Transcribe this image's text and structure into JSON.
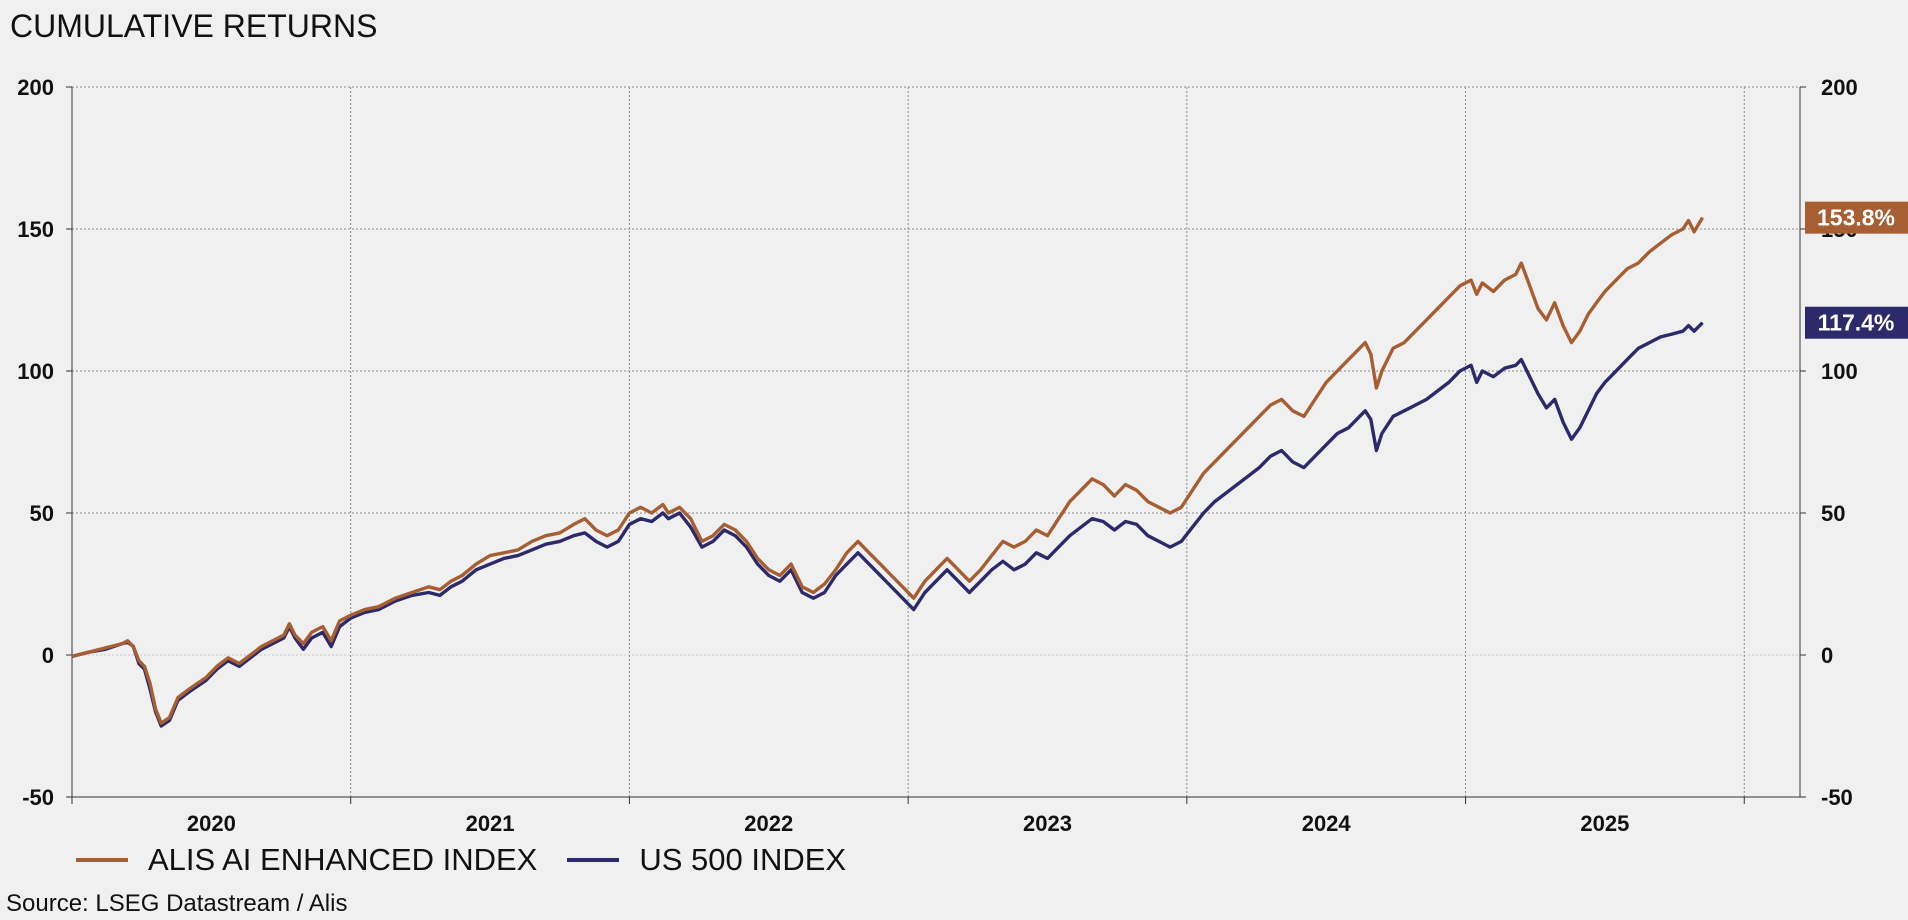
{
  "chart_data": {
    "type": "line",
    "title": "CUMULATIVE RETURNS",
    "source": "Source: LSEG Datastream / Alis",
    "ylim": [
      -50,
      200
    ],
    "yticks": [
      -50,
      0,
      50,
      100,
      150,
      200
    ],
    "xlim": [
      2019.5,
      2025.7
    ],
    "xticks": [
      2020,
      2021,
      2022,
      2023,
      2024,
      2025
    ],
    "grid": true,
    "legend_position": "bottom-left",
    "series": [
      {
        "name": "ALIS AI ENHANCED INDEX",
        "color": "#a65e32",
        "end_label": "153.8%",
        "points": [
          [
            2019.5,
            -0.5
          ],
          [
            2019.56,
            1
          ],
          [
            2019.62,
            2.5
          ],
          [
            2019.68,
            4
          ],
          [
            2019.7,
            5
          ],
          [
            2019.72,
            3
          ],
          [
            2019.74,
            -2
          ],
          [
            2019.76,
            -4
          ],
          [
            2019.78,
            -10
          ],
          [
            2019.8,
            -19
          ],
          [
            2019.82,
            -24
          ],
          [
            2019.85,
            -22
          ],
          [
            2019.88,
            -15
          ],
          [
            2019.92,
            -12
          ],
          [
            2019.95,
            -10
          ],
          [
            2019.98,
            -8
          ],
          [
            2020.02,
            -4
          ],
          [
            2020.06,
            -1
          ],
          [
            2020.1,
            -3
          ],
          [
            2020.14,
            0
          ],
          [
            2020.18,
            3
          ],
          [
            2020.22,
            5
          ],
          [
            2020.26,
            7
          ],
          [
            2020.28,
            11
          ],
          [
            2020.3,
            7
          ],
          [
            2020.33,
            4
          ],
          [
            2020.36,
            8
          ],
          [
            2020.4,
            10
          ],
          [
            2020.43,
            5
          ],
          [
            2020.46,
            12
          ],
          [
            2020.5,
            14
          ],
          [
            2020.55,
            16
          ],
          [
            2020.6,
            17
          ],
          [
            2020.66,
            20
          ],
          [
            2020.72,
            22
          ],
          [
            2020.78,
            24
          ],
          [
            2020.82,
            23
          ],
          [
            2020.86,
            26
          ],
          [
            2020.9,
            28
          ],
          [
            2020.95,
            32
          ],
          [
            2021.0,
            35
          ],
          [
            2021.05,
            36
          ],
          [
            2021.1,
            37
          ],
          [
            2021.15,
            40
          ],
          [
            2021.2,
            42
          ],
          [
            2021.25,
            43
          ],
          [
            2021.3,
            46
          ],
          [
            2021.34,
            48
          ],
          [
            2021.38,
            44
          ],
          [
            2021.42,
            42
          ],
          [
            2021.46,
            44
          ],
          [
            2021.5,
            50
          ],
          [
            2021.54,
            52
          ],
          [
            2021.58,
            50
          ],
          [
            2021.62,
            53
          ],
          [
            2021.64,
            50
          ],
          [
            2021.68,
            52
          ],
          [
            2021.72,
            48
          ],
          [
            2021.76,
            40
          ],
          [
            2021.8,
            42
          ],
          [
            2021.84,
            46
          ],
          [
            2021.88,
            44
          ],
          [
            2021.92,
            40
          ],
          [
            2021.96,
            34
          ],
          [
            2022.0,
            30
          ],
          [
            2022.04,
            28
          ],
          [
            2022.08,
            32
          ],
          [
            2022.12,
            24
          ],
          [
            2022.16,
            22
          ],
          [
            2022.2,
            25
          ],
          [
            2022.24,
            30
          ],
          [
            2022.28,
            36
          ],
          [
            2022.32,
            40
          ],
          [
            2022.36,
            36
          ],
          [
            2022.4,
            32
          ],
          [
            2022.44,
            28
          ],
          [
            2022.48,
            24
          ],
          [
            2022.52,
            20
          ],
          [
            2022.56,
            26
          ],
          [
            2022.6,
            30
          ],
          [
            2022.64,
            34
          ],
          [
            2022.68,
            30
          ],
          [
            2022.72,
            26
          ],
          [
            2022.76,
            30
          ],
          [
            2022.8,
            35
          ],
          [
            2022.84,
            40
          ],
          [
            2022.88,
            38
          ],
          [
            2022.92,
            40
          ],
          [
            2022.96,
            44
          ],
          [
            2023.0,
            42
          ],
          [
            2023.04,
            48
          ],
          [
            2023.08,
            54
          ],
          [
            2023.12,
            58
          ],
          [
            2023.16,
            62
          ],
          [
            2023.2,
            60
          ],
          [
            2023.24,
            56
          ],
          [
            2023.28,
            60
          ],
          [
            2023.32,
            58
          ],
          [
            2023.36,
            54
          ],
          [
            2023.4,
            52
          ],
          [
            2023.44,
            50
          ],
          [
            2023.48,
            52
          ],
          [
            2023.52,
            58
          ],
          [
            2023.56,
            64
          ],
          [
            2023.6,
            68
          ],
          [
            2023.64,
            72
          ],
          [
            2023.68,
            76
          ],
          [
            2023.72,
            80
          ],
          [
            2023.76,
            84
          ],
          [
            2023.8,
            88
          ],
          [
            2023.84,
            90
          ],
          [
            2023.88,
            86
          ],
          [
            2023.92,
            84
          ],
          [
            2023.96,
            90
          ],
          [
            2024.0,
            96
          ],
          [
            2024.04,
            100
          ],
          [
            2024.08,
            104
          ],
          [
            2024.12,
            108
          ],
          [
            2024.14,
            110
          ],
          [
            2024.16,
            106
          ],
          [
            2024.18,
            94
          ],
          [
            2024.2,
            100
          ],
          [
            2024.24,
            108
          ],
          [
            2024.28,
            110
          ],
          [
            2024.32,
            114
          ],
          [
            2024.36,
            118
          ],
          [
            2024.4,
            122
          ],
          [
            2024.44,
            126
          ],
          [
            2024.48,
            130
          ],
          [
            2024.52,
            132
          ],
          [
            2024.54,
            127
          ],
          [
            2024.56,
            131
          ],
          [
            2024.6,
            128
          ],
          [
            2024.64,
            132
          ],
          [
            2024.68,
            134
          ],
          [
            2024.7,
            138
          ],
          [
            2024.73,
            130
          ],
          [
            2024.76,
            122
          ],
          [
            2024.79,
            118
          ],
          [
            2024.82,
            124
          ],
          [
            2024.85,
            116
          ],
          [
            2024.88,
            110
          ],
          [
            2024.91,
            114
          ],
          [
            2024.94,
            120
          ],
          [
            2024.97,
            124
          ],
          [
            2025.0,
            128
          ],
          [
            2025.04,
            132
          ],
          [
            2025.08,
            136
          ],
          [
            2025.12,
            138
          ],
          [
            2025.16,
            142
          ],
          [
            2025.2,
            145
          ],
          [
            2025.24,
            148
          ],
          [
            2025.28,
            150
          ],
          [
            2025.3,
            153
          ],
          [
            2025.32,
            149
          ],
          [
            2025.35,
            154
          ]
        ]
      },
      {
        "name": "US 500 INDEX",
        "color": "#2c2a6b",
        "end_label": "117.4%",
        "points": [
          [
            2019.5,
            -0.5
          ],
          [
            2019.56,
            1
          ],
          [
            2019.62,
            2
          ],
          [
            2019.68,
            4
          ],
          [
            2019.7,
            4.5
          ],
          [
            2019.72,
            3
          ],
          [
            2019.74,
            -3
          ],
          [
            2019.76,
            -5
          ],
          [
            2019.78,
            -12
          ],
          [
            2019.8,
            -20
          ],
          [
            2019.82,
            -25
          ],
          [
            2019.85,
            -23
          ],
          [
            2019.88,
            -16
          ],
          [
            2019.92,
            -13
          ],
          [
            2019.95,
            -11
          ],
          [
            2019.98,
            -9
          ],
          [
            2020.02,
            -5
          ],
          [
            2020.06,
            -2
          ],
          [
            2020.1,
            -4
          ],
          [
            2020.14,
            -1
          ],
          [
            2020.18,
            2
          ],
          [
            2020.22,
            4
          ],
          [
            2020.26,
            6
          ],
          [
            2020.28,
            10
          ],
          [
            2020.3,
            6
          ],
          [
            2020.33,
            2
          ],
          [
            2020.36,
            6
          ],
          [
            2020.4,
            8
          ],
          [
            2020.43,
            3
          ],
          [
            2020.46,
            10
          ],
          [
            2020.5,
            13
          ],
          [
            2020.55,
            15
          ],
          [
            2020.6,
            16
          ],
          [
            2020.66,
            19
          ],
          [
            2020.72,
            21
          ],
          [
            2020.78,
            22
          ],
          [
            2020.82,
            21
          ],
          [
            2020.86,
            24
          ],
          [
            2020.9,
            26
          ],
          [
            2020.95,
            30
          ],
          [
            2021.0,
            32
          ],
          [
            2021.05,
            34
          ],
          [
            2021.1,
            35
          ],
          [
            2021.15,
            37
          ],
          [
            2021.2,
            39
          ],
          [
            2021.25,
            40
          ],
          [
            2021.3,
            42
          ],
          [
            2021.34,
            43
          ],
          [
            2021.38,
            40
          ],
          [
            2021.42,
            38
          ],
          [
            2021.46,
            40
          ],
          [
            2021.5,
            46
          ],
          [
            2021.54,
            48
          ],
          [
            2021.58,
            47
          ],
          [
            2021.62,
            50
          ],
          [
            2021.64,
            48
          ],
          [
            2021.68,
            50
          ],
          [
            2021.72,
            45
          ],
          [
            2021.76,
            38
          ],
          [
            2021.8,
            40
          ],
          [
            2021.84,
            44
          ],
          [
            2021.88,
            42
          ],
          [
            2021.92,
            38
          ],
          [
            2021.96,
            32
          ],
          [
            2022.0,
            28
          ],
          [
            2022.04,
            26
          ],
          [
            2022.08,
            30
          ],
          [
            2022.12,
            22
          ],
          [
            2022.16,
            20
          ],
          [
            2022.2,
            22
          ],
          [
            2022.24,
            28
          ],
          [
            2022.28,
            32
          ],
          [
            2022.32,
            36
          ],
          [
            2022.36,
            32
          ],
          [
            2022.4,
            28
          ],
          [
            2022.44,
            24
          ],
          [
            2022.48,
            20
          ],
          [
            2022.52,
            16
          ],
          [
            2022.56,
            22
          ],
          [
            2022.6,
            26
          ],
          [
            2022.64,
            30
          ],
          [
            2022.68,
            26
          ],
          [
            2022.72,
            22
          ],
          [
            2022.76,
            26
          ],
          [
            2022.8,
            30
          ],
          [
            2022.84,
            33
          ],
          [
            2022.88,
            30
          ],
          [
            2022.92,
            32
          ],
          [
            2022.96,
            36
          ],
          [
            2023.0,
            34
          ],
          [
            2023.04,
            38
          ],
          [
            2023.08,
            42
          ],
          [
            2023.12,
            45
          ],
          [
            2023.16,
            48
          ],
          [
            2023.2,
            47
          ],
          [
            2023.24,
            44
          ],
          [
            2023.28,
            47
          ],
          [
            2023.32,
            46
          ],
          [
            2023.36,
            42
          ],
          [
            2023.4,
            40
          ],
          [
            2023.44,
            38
          ],
          [
            2023.48,
            40
          ],
          [
            2023.52,
            45
          ],
          [
            2023.56,
            50
          ],
          [
            2023.6,
            54
          ],
          [
            2023.64,
            57
          ],
          [
            2023.68,
            60
          ],
          [
            2023.72,
            63
          ],
          [
            2023.76,
            66
          ],
          [
            2023.8,
            70
          ],
          [
            2023.84,
            72
          ],
          [
            2023.88,
            68
          ],
          [
            2023.92,
            66
          ],
          [
            2023.96,
            70
          ],
          [
            2024.0,
            74
          ],
          [
            2024.04,
            78
          ],
          [
            2024.08,
            80
          ],
          [
            2024.12,
            84
          ],
          [
            2024.14,
            86
          ],
          [
            2024.16,
            83
          ],
          [
            2024.18,
            72
          ],
          [
            2024.2,
            78
          ],
          [
            2024.24,
            84
          ],
          [
            2024.28,
            86
          ],
          [
            2024.32,
            88
          ],
          [
            2024.36,
            90
          ],
          [
            2024.4,
            93
          ],
          [
            2024.44,
            96
          ],
          [
            2024.48,
            100
          ],
          [
            2024.52,
            102
          ],
          [
            2024.54,
            96
          ],
          [
            2024.56,
            100
          ],
          [
            2024.6,
            98
          ],
          [
            2024.64,
            101
          ],
          [
            2024.68,
            102
          ],
          [
            2024.7,
            104
          ],
          [
            2024.73,
            98
          ],
          [
            2024.76,
            92
          ],
          [
            2024.79,
            87
          ],
          [
            2024.82,
            90
          ],
          [
            2024.85,
            82
          ],
          [
            2024.88,
            76
          ],
          [
            2024.91,
            80
          ],
          [
            2024.94,
            86
          ],
          [
            2024.97,
            92
          ],
          [
            2025.0,
            96
          ],
          [
            2025.04,
            100
          ],
          [
            2025.08,
            104
          ],
          [
            2025.12,
            108
          ],
          [
            2025.16,
            110
          ],
          [
            2025.2,
            112
          ],
          [
            2025.24,
            113
          ],
          [
            2025.28,
            114
          ],
          [
            2025.3,
            116
          ],
          [
            2025.32,
            114
          ],
          [
            2025.35,
            117
          ]
        ]
      }
    ]
  }
}
